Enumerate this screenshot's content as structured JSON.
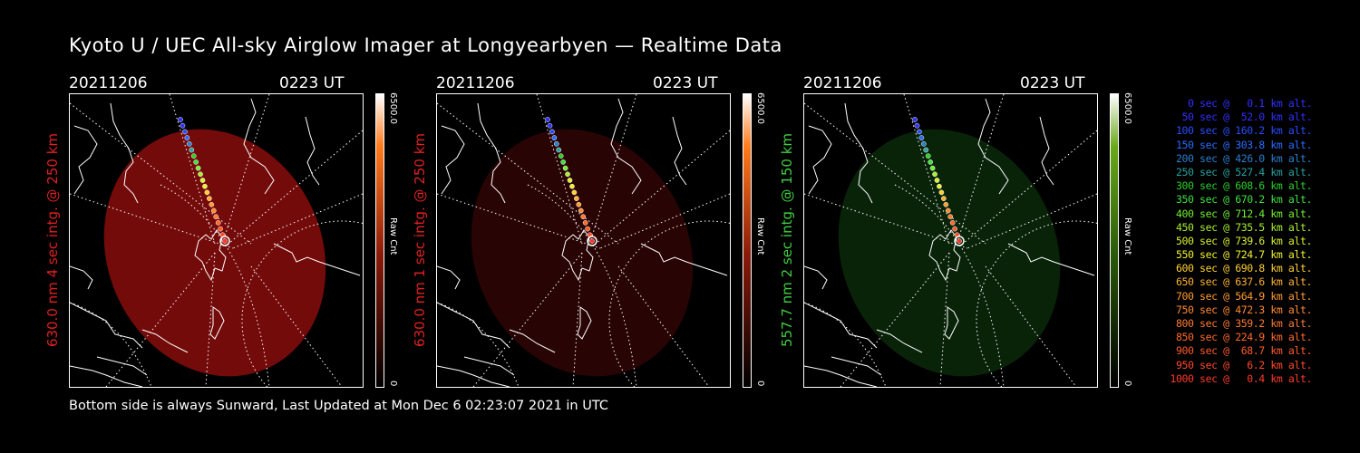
{
  "title": "Kyoto U / UEC All-sky Airglow Imager at Longyearbyen — Realtime Data",
  "footer": "Bottom side is always Sunward, Last Updated at Mon Dec  6 02:23:07 2021 in UTC",
  "panels": [
    {
      "date": "20211206",
      "time": "0223 UT",
      "side_label": "630.0 nm 4 sec intg. @ 250 km",
      "label_color": "#e02020",
      "glow_color": "#7a0c0c",
      "glow_opacity": 0.95,
      "cbar_max": "6500.0",
      "cbar_min": "0",
      "cbar_unit": "Raw Cnt",
      "cbar_color": "#ff7a1a"
    },
    {
      "date": "20211206",
      "time": "0223 UT",
      "side_label": "630.0 nm 1 sec intg. @ 250 km",
      "label_color": "#e02020",
      "glow_color": "#3a0606",
      "glow_opacity": 0.7,
      "cbar_max": "6500.0",
      "cbar_min": "0",
      "cbar_unit": "Raw Cnt",
      "cbar_color": "#ff7a1a"
    },
    {
      "date": "20211206",
      "time": "0223 UT",
      "side_label": "557.7 nm 2 sec intg. @ 150 km",
      "label_color": "#3fcf3f",
      "glow_color": "#0f3a0f",
      "glow_opacity": 0.6,
      "cbar_max": "6500.0",
      "cbar_min": "0",
      "cbar_unit": "Raw Cnt",
      "cbar_color": "#6aa81a"
    }
  ],
  "legend": [
    {
      "text": "0 sec @   0.1 km alt.",
      "color": "#3030ff"
    },
    {
      "text": "50 sec @  52.0 km alt.",
      "color": "#3030ff"
    },
    {
      "text": "100 sec @ 160.2 km alt.",
      "color": "#2a4cff"
    },
    {
      "text": "150 sec @ 303.8 km alt.",
      "color": "#2a6cff"
    },
    {
      "text": "200 sec @ 426.0 km alt.",
      "color": "#2a7fd0"
    },
    {
      "text": "250 sec @ 527.4 km alt.",
      "color": "#2aa0a0"
    },
    {
      "text": "300 sec @ 608.6 km alt.",
      "color": "#2ad02a"
    },
    {
      "text": "350 sec @ 670.2 km alt.",
      "color": "#40e040"
    },
    {
      "text": "400 sec @ 712.4 km alt.",
      "color": "#70f030"
    },
    {
      "text": "450 sec @ 735.5 km alt.",
      "color": "#a8f030"
    },
    {
      "text": "500 sec @ 739.6 km alt.",
      "color": "#d8f030"
    },
    {
      "text": "550 sec @ 724.7 km alt.",
      "color": "#f0f030"
    },
    {
      "text": "600 sec @ 690.8 km alt.",
      "color": "#ffd030"
    },
    {
      "text": "650 sec @ 637.6 km alt.",
      "color": "#ffb030"
    },
    {
      "text": "700 sec @ 564.9 km alt.",
      "color": "#ff9a30"
    },
    {
      "text": "750 sec @ 472.3 km alt.",
      "color": "#ff8a30"
    },
    {
      "text": "800 sec @ 359.2 km alt.",
      "color": "#ff7a30"
    },
    {
      "text": "850 sec @ 224.9 km alt.",
      "color": "#ff6a2a"
    },
    {
      "text": "900 sec @  68.7 km alt.",
      "color": "#ff5a2a"
    },
    {
      "text": "950 sec @   6.2 km alt.",
      "color": "#ff4a2a"
    },
    {
      "text": "1000 sec @   0.4 km alt.",
      "color": "#ff3a2a"
    }
  ]
}
